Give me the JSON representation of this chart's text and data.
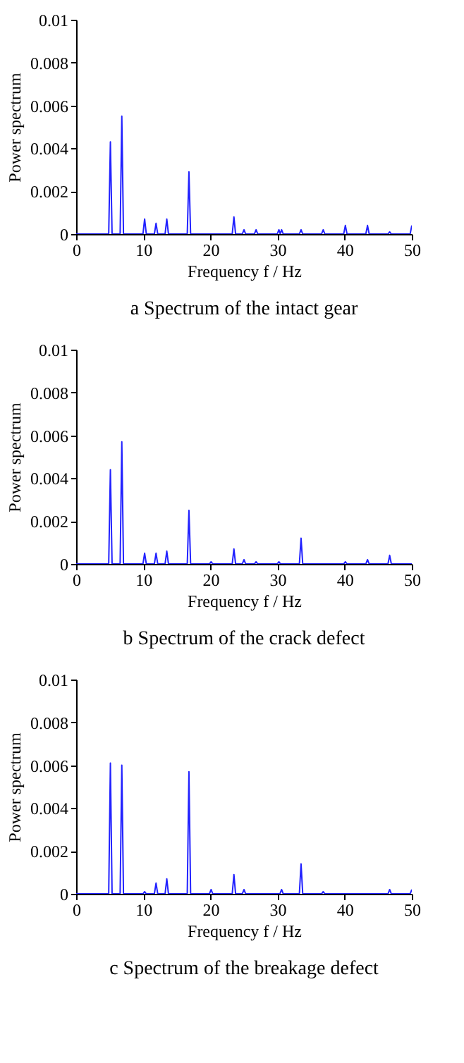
{
  "chart_data": [
    {
      "type": "line",
      "title": "a Spectrum of the intact gear",
      "xlabel": "Frequency f / Hz",
      "ylabel": "Power spectrum",
      "xlim": [
        0,
        50
      ],
      "xticks": [
        0,
        10,
        20,
        30,
        40,
        50
      ],
      "ylim": [
        0,
        0.01
      ],
      "yticks": [
        0,
        0.002,
        0.004,
        0.006,
        0.008,
        0.01
      ],
      "grid": false,
      "series": [
        {
          "color": "#2222ff",
          "x": [
            0,
            4.85,
            5.1,
            5.35,
            6.55,
            6.8,
            7.05,
            9.95,
            10.2,
            10.45,
            11.65,
            11.9,
            12.15,
            13.25,
            13.5,
            13.75,
            16.55,
            16.8,
            17.05,
            23.25,
            23.5,
            23.75,
            24.75,
            25,
            25.25,
            26.55,
            26.8,
            27.05,
            29.95,
            30.2,
            30.4,
            30.6,
            30.85,
            33.25,
            33.5,
            33.75,
            36.55,
            36.8,
            37.05,
            39.85,
            40.1,
            40.35,
            43.15,
            43.4,
            43.65,
            46.45,
            46.7,
            46.95,
            49.75,
            50
          ],
          "values": [
            0,
            0,
            0.0043,
            0,
            0,
            0.0055,
            0,
            0,
            0.0007,
            0,
            0,
            0.0005,
            0,
            0,
            0.0007,
            0,
            0,
            0.0029,
            0,
            0,
            0.0008,
            0,
            0,
            0.0002,
            0,
            0,
            0.0002,
            0,
            0,
            0.0002,
            0,
            0.0002,
            0,
            0,
            0.0002,
            0,
            0,
            0.0002,
            0,
            0,
            0.0004,
            0,
            0,
            0.0004,
            0,
            0,
            0.0001,
            0,
            0,
            0.0004
          ]
        }
      ]
    },
    {
      "type": "line",
      "title": "b Spectrum of the crack defect",
      "xlabel": "Frequency f / Hz",
      "ylabel": "Power spectrum",
      "xlim": [
        0,
        50
      ],
      "xticks": [
        0,
        10,
        20,
        30,
        40,
        50
      ],
      "ylim": [
        0,
        0.01
      ],
      "yticks": [
        0,
        0.002,
        0.004,
        0.006,
        0.008,
        0.01
      ],
      "grid": false,
      "series": [
        {
          "color": "#2222ff",
          "x": [
            0,
            4.85,
            5.1,
            5.35,
            6.55,
            6.8,
            7.05,
            9.95,
            10.2,
            10.45,
            11.65,
            11.9,
            12.15,
            13.25,
            13.5,
            13.75,
            16.55,
            16.8,
            17.05,
            19.85,
            20.1,
            20.35,
            23.25,
            23.5,
            23.75,
            24.75,
            25,
            25.25,
            26.55,
            26.8,
            27.05,
            29.95,
            30.2,
            30.45,
            33.25,
            33.5,
            33.75,
            39.85,
            40.1,
            40.35,
            43.15,
            43.4,
            43.65,
            46.45,
            46.7,
            46.95,
            50
          ],
          "values": [
            0,
            0,
            0.0044,
            0,
            0,
            0.0057,
            0,
            0,
            0.0005,
            0,
            0,
            0.0005,
            0,
            0,
            0.0006,
            0,
            0,
            0.0025,
            0,
            0,
            0.0001,
            0,
            0,
            0.0007,
            0,
            0,
            0.0002,
            0,
            0,
            0.0001,
            0,
            0,
            0.0001,
            0,
            0,
            0.0012,
            0,
            0,
            0.0001,
            0,
            0,
            0.0002,
            0,
            0,
            0.0004,
            0,
            0
          ]
        }
      ]
    },
    {
      "type": "line",
      "title": "c Spectrum of the breakage defect",
      "xlabel": "Frequency f / Hz",
      "ylabel": "Power spectrum",
      "xlim": [
        0,
        50
      ],
      "xticks": [
        0,
        10,
        20,
        30,
        40,
        50
      ],
      "ylim": [
        0,
        0.01
      ],
      "yticks": [
        0,
        0.002,
        0.004,
        0.006,
        0.008,
        0.01
      ],
      "grid": false,
      "series": [
        {
          "color": "#2222ff",
          "x": [
            0,
            4.85,
            5.1,
            5.35,
            6.55,
            6.8,
            7.05,
            9.95,
            10.2,
            10.45,
            11.65,
            11.9,
            12.15,
            13.25,
            13.5,
            13.75,
            16.55,
            16.8,
            17.05,
            19.85,
            20.1,
            20.35,
            23.25,
            23.5,
            23.75,
            24.75,
            25,
            25.25,
            30.35,
            30.6,
            30.85,
            33.25,
            33.5,
            33.75,
            36.55,
            36.8,
            37.05,
            46.45,
            46.7,
            46.95,
            49.75,
            50
          ],
          "values": [
            0,
            0,
            0.0061,
            0,
            0,
            0.006,
            0,
            0,
            0.0001,
            0,
            0,
            0.0005,
            0,
            0,
            0.0007,
            0,
            0,
            0.0057,
            0,
            0,
            0.0002,
            0,
            0,
            0.0009,
            0,
            0,
            0.0002,
            0,
            0,
            0.0002,
            0,
            0,
            0.0014,
            0,
            0,
            0.0001,
            0,
            0,
            0.0002,
            0,
            0,
            0.0002
          ]
        }
      ]
    }
  ]
}
